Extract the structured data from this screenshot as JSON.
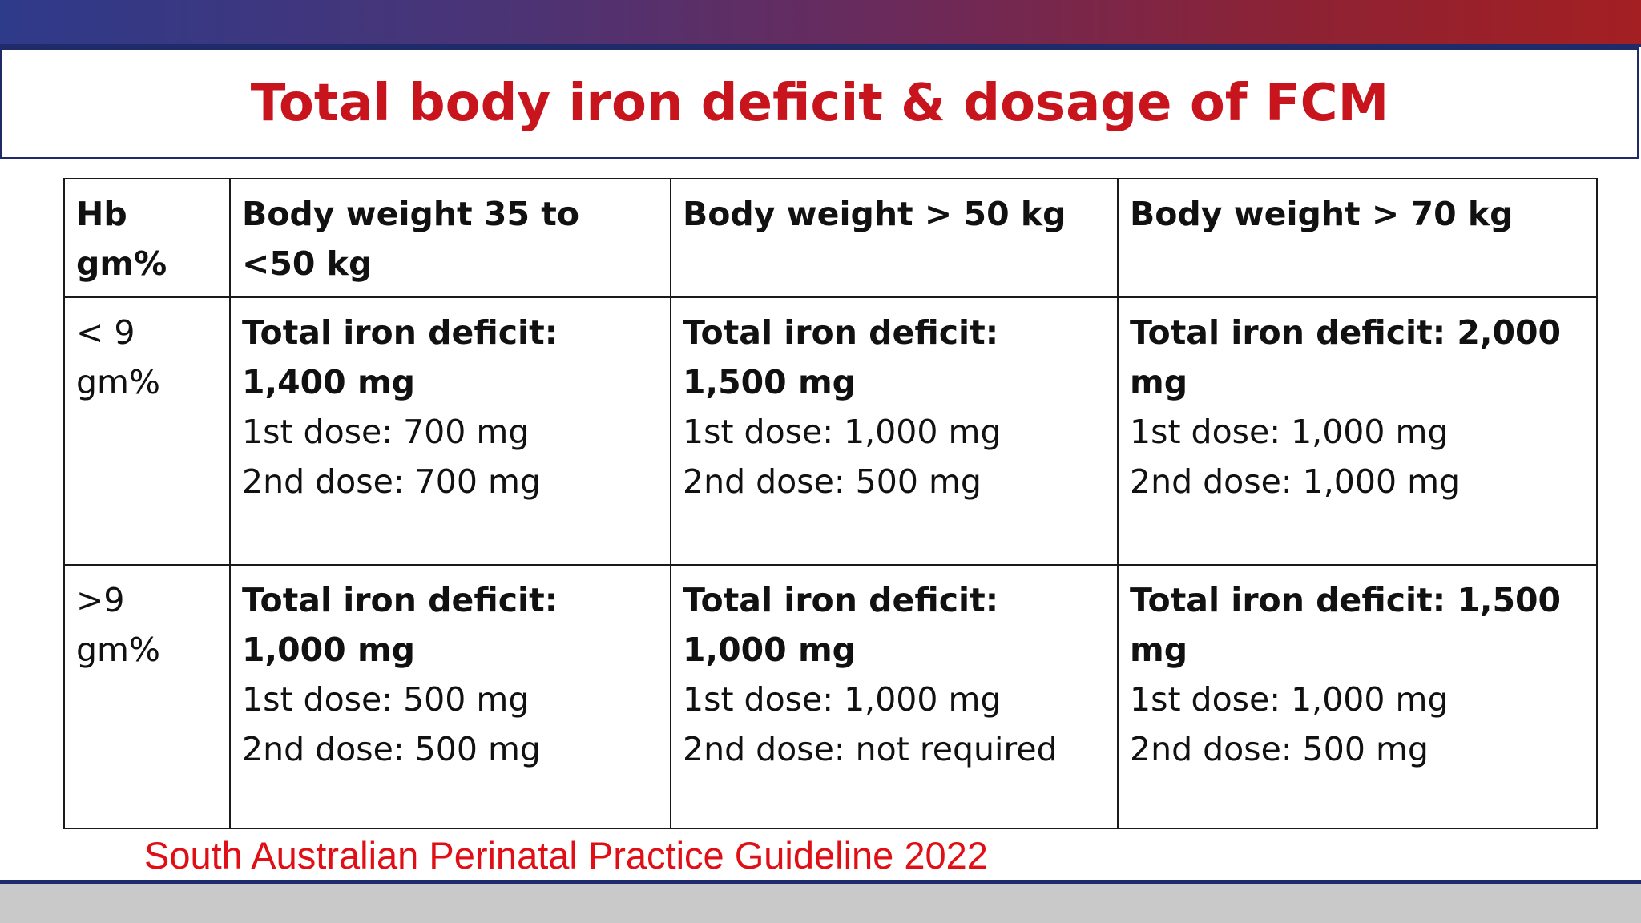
{
  "slide": {
    "title": "Total body iron deficit & dosage of FCM",
    "citation": "South Australian Perinatal Practice Guideline 2022",
    "colors": {
      "title": "#c8141c",
      "citation": "#e00f16",
      "band_left": "#2e3a8a",
      "band_right": "#a31f22",
      "footer_band": "#c9c9c9"
    }
  },
  "table": {
    "headers": [
      "Hb gm%",
      "Body weight 35 to <50 kg",
      "Body weight > 50 kg",
      "Body weight > 70 kg"
    ],
    "rows": [
      {
        "hb": "< 9 gm%",
        "cells": [
          {
            "total": "Total iron deficit: 1,400 mg",
            "dose1": "1st dose: 700 mg",
            "dose2": "2nd dose: 700 mg"
          },
          {
            "total": "Total iron deficit: 1,500 mg",
            "dose1": "1st dose: 1,000 mg",
            "dose2": "2nd dose: 500 mg"
          },
          {
            "total": "Total iron deficit: 2,000 mg",
            "dose1": "1st dose: 1,000 mg",
            "dose2": "2nd dose: 1,000 mg"
          }
        ]
      },
      {
        "hb": ">9 gm%",
        "cells": [
          {
            "total": "Total iron deficit: 1,000 mg",
            "dose1": "1st dose: 500 mg",
            "dose2": "2nd dose: 500 mg"
          },
          {
            "total": "Total iron deficit: 1,000 mg",
            "dose1": "1st dose: 1,000 mg",
            "dose2": "2nd dose: not required"
          },
          {
            "total": "Total iron deficit: 1,500 mg",
            "dose1": "1st dose: 1,000 mg",
            "dose2": "2nd dose: 500 mg"
          }
        ]
      }
    ]
  }
}
